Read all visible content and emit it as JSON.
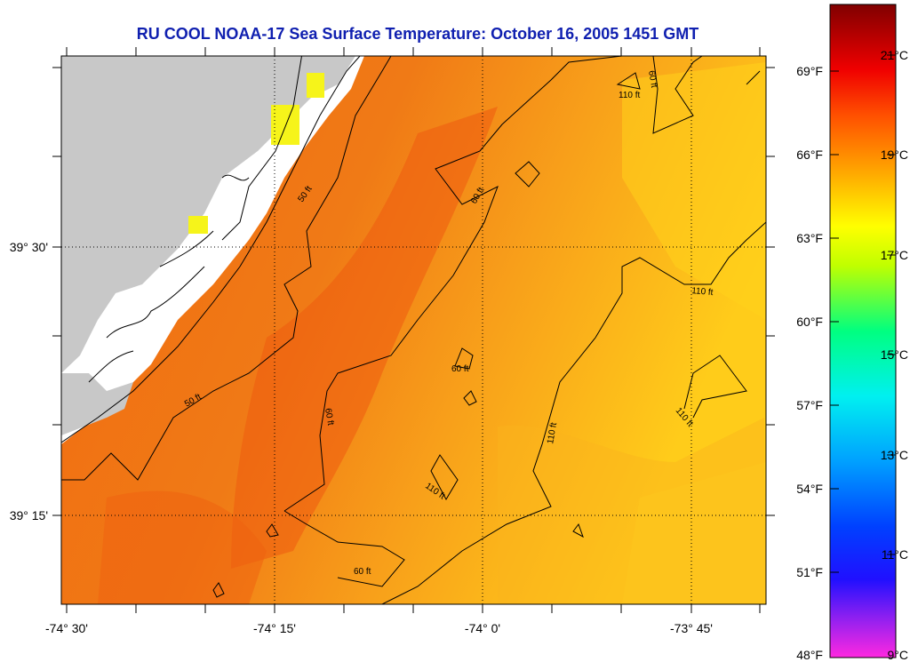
{
  "title": "RU COOL  NOAA-17  Sea Surface Temperature:  October 16, 2005 1451 GMT",
  "map": {
    "lon_labels": [
      "-74° 30'",
      "-74° 15'",
      "-74° 0'",
      "-73° 45'"
    ],
    "lat_labels": [
      "39° 30'",
      "39° 15'"
    ],
    "depth_contour_labels": [
      "50 ft",
      "50 ft",
      "60 ft",
      "60 ft",
      "60 ft",
      "60 ft",
      "60 ft",
      "110 ft",
      "110 ft",
      "110 ft",
      "110 ft",
      "110 ft"
    ]
  },
  "temperature_scale": {
    "fahrenheit_ticks": [
      "69°F",
      "66°F",
      "63°F",
      "60°F",
      "57°F",
      "54°F",
      "51°F",
      "48°F"
    ],
    "celsius_ticks": [
      "21°C",
      "19°C",
      "17°C",
      "15°C",
      "13°C",
      "11°C",
      "9°C"
    ]
  },
  "colors": {
    "title": "#1020b0",
    "land": "#c8c8c8",
    "cloud_mask": "#ffffff",
    "sst_warm": "#f26a10",
    "sst_mid": "#f89818",
    "sst_cool": "#ffc81a",
    "colorbar": [
      "#ff28e0",
      "#6010ff",
      "#0020ff",
      "#00a0ff",
      "#00f0f0",
      "#00ff60",
      "#ffff00",
      "#ffa000",
      "#ff4000",
      "#e00000",
      "#a00000",
      "#800000"
    ]
  }
}
